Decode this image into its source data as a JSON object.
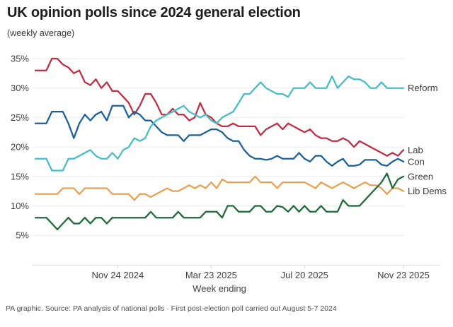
{
  "header": {
    "title": "UK opinion polls since 2024 general election",
    "subtitle": "(weekly average)"
  },
  "footer": {
    "source_line": "PA graphic. Source: PA analysis of national polls · First post-election poll carried out August 5-7 2024"
  },
  "colors": {
    "reform": "#46bcc8",
    "lab": "#be2d41",
    "con": "#1a6096",
    "green": "#1e6937",
    "libdem": "#eba050",
    "grid": "#ebebe9",
    "axis": "#dededc",
    "axis_text": "#3f3f3f",
    "legend_text": "#3c3c3c"
  },
  "chart_data": {
    "type": "line",
    "title": "UK opinion polls since 2024 general election",
    "subtitle": "(weekly average)",
    "xlabel": "Week ending",
    "ylabel": "",
    "y_unit": "%",
    "yticks": [
      35,
      30,
      25,
      20,
      15,
      10,
      5
    ],
    "ylim": [
      3,
      37
    ],
    "grid": "horizontal",
    "legend_position": "right-of-line-ends",
    "x_tick_labels": [
      "Nov 24 2024",
      "Mar 23 2025",
      "Jul 20 2025",
      "Nov 23 2025"
    ],
    "x_tick_indices": [
      15,
      32,
      49,
      67
    ],
    "num_points": 68,
    "series": [
      {
        "name": "lab",
        "label": "Lab",
        "color": "#be2d41",
        "values": [
          33,
          33,
          33,
          35,
          35,
          34,
          33.5,
          32.5,
          33,
          31,
          30.5,
          31.5,
          30,
          31,
          29.5,
          29.5,
          28.5,
          27.5,
          25.5,
          27,
          29,
          29,
          27.5,
          25.5,
          25.5,
          26.5,
          25.5,
          25.5,
          24.5,
          25,
          27.5,
          25.5,
          25,
          24,
          23.5,
          23.5,
          24,
          23.5,
          23.5,
          23.5,
          23.5,
          22,
          23,
          23.5,
          24,
          23,
          24,
          23.5,
          23,
          22.5,
          23,
          22,
          21.5,
          21.5,
          21,
          21,
          21.5,
          21,
          20,
          21,
          20.5,
          20,
          19.5,
          19,
          18.5,
          19,
          18.5,
          19.5
        ]
      },
      {
        "name": "con",
        "label": "Con",
        "color": "#1a6096",
        "values": [
          24,
          24,
          24,
          26,
          26,
          26,
          24,
          21.5,
          24,
          25.5,
          24.5,
          25.5,
          26,
          24.5,
          27,
          27,
          27,
          25,
          26,
          25.5,
          24.5,
          24.5,
          23.5,
          22.5,
          22,
          22,
          22,
          21,
          22,
          22,
          22,
          22.5,
          23,
          23,
          22.5,
          21.5,
          21,
          21,
          19.5,
          18.5,
          18,
          18,
          17.8,
          18,
          18.5,
          18,
          18,
          18,
          19,
          18,
          17.5,
          18.5,
          18.5,
          17.5,
          16.8,
          17.5,
          18,
          16.8,
          16.8,
          17,
          17.8,
          17.8,
          17.8,
          17,
          16.8,
          17.5,
          18,
          17.5
        ]
      },
      {
        "name": "libdem",
        "label": "Lib Dems",
        "color": "#eba050",
        "values": [
          12,
          12,
          12,
          12,
          12,
          13,
          13,
          13,
          12,
          13,
          13,
          13,
          13,
          13,
          12,
          12,
          12,
          12,
          11,
          12,
          12,
          11.5,
          12,
          12.5,
          13,
          12.5,
          12.5,
          13,
          13.5,
          13,
          13.5,
          13,
          14,
          13,
          14.5,
          14,
          14,
          14,
          14,
          14,
          15,
          14,
          14,
          14,
          13,
          14,
          14,
          14,
          14,
          14,
          13.5,
          13,
          14,
          13.5,
          13,
          13.5,
          14,
          13.5,
          13,
          13.5,
          14,
          13.5,
          13.5,
          13,
          12,
          13,
          13,
          12.5
        ]
      },
      {
        "name": "green",
        "label": "Green",
        "color": "#1e6937",
        "values": [
          8,
          8,
          8,
          7,
          6,
          7,
          8,
          7,
          7,
          8,
          7,
          8,
          8,
          7,
          8,
          8,
          8,
          8,
          8,
          8,
          8,
          9,
          8,
          8,
          8,
          8,
          9,
          8,
          8,
          8,
          8,
          9,
          9,
          9,
          8,
          10,
          10,
          9,
          9,
          9,
          10,
          10,
          9,
          9,
          10,
          9.8,
          9,
          10,
          9,
          10,
          9,
          9,
          10,
          9,
          9,
          9,
          11,
          10,
          10,
          10,
          11,
          12,
          13,
          14,
          15.5,
          13,
          14.5,
          15
        ]
      },
      {
        "name": "reform",
        "label": "Reform",
        "color": "#46bcc8",
        "values": [
          18,
          18,
          18,
          16,
          16,
          16,
          18,
          18,
          18.5,
          19,
          19.5,
          18.5,
          18,
          18,
          19,
          18,
          19.5,
          20,
          21.5,
          21,
          21.5,
          23.5,
          24.5,
          25,
          25.5,
          26,
          26.5,
          27,
          26,
          25.5,
          25,
          25.5,
          24.5,
          24,
          25,
          25.5,
          26,
          27.5,
          29,
          29,
          30,
          31,
          30,
          29.5,
          29,
          29,
          28.5,
          30,
          30,
          30,
          31,
          30,
          30,
          30,
          32,
          30,
          31,
          32,
          31.5,
          31.5,
          31,
          30,
          30,
          31,
          30,
          30,
          30,
          30
        ]
      }
    ]
  }
}
